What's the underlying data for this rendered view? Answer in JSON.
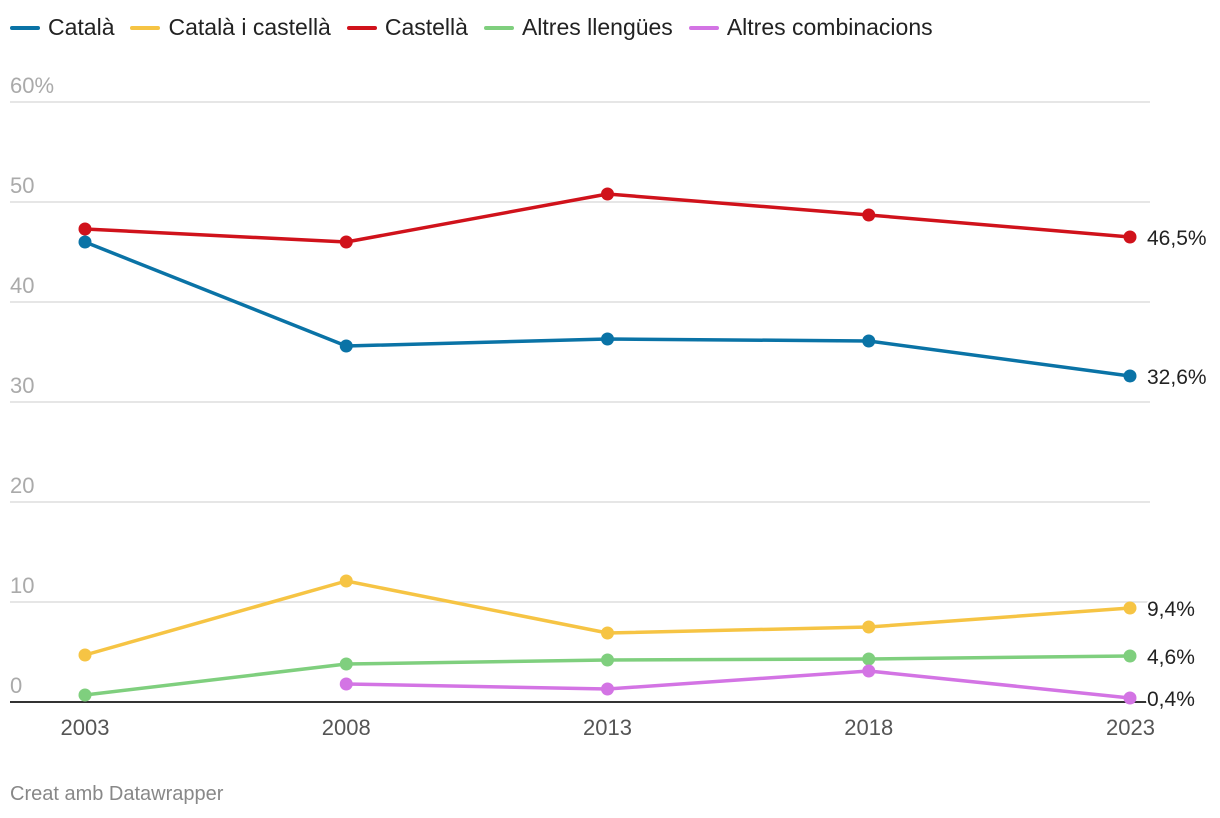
{
  "chart_data": {
    "type": "line",
    "title": "",
    "xlabel": "",
    "ylabel": "",
    "x": [
      2003,
      2008,
      2013,
      2018,
      2023
    ],
    "x_tick_labels": [
      "2003",
      "2008",
      "2013",
      "2018",
      "2023"
    ],
    "y_ticks": [
      0,
      10,
      20,
      30,
      40,
      50,
      60
    ],
    "y_tick_labels": [
      "0",
      "10",
      "20",
      "30",
      "40",
      "50",
      "60%"
    ],
    "ylim": [
      0,
      60
    ],
    "grid": true,
    "legend_position": "top-left",
    "series": [
      {
        "name": "Català",
        "color": "#0a73a6",
        "values": [
          46.0,
          35.6,
          36.3,
          36.1,
          32.6
        ],
        "end_label": "32,6%"
      },
      {
        "name": "Català i castellà",
        "color": "#f6c444",
        "values": [
          4.7,
          12.1,
          6.9,
          7.5,
          9.4
        ],
        "end_label": "9,4%"
      },
      {
        "name": "Castellà",
        "color": "#d0121b",
        "values": [
          47.3,
          46.0,
          50.8,
          48.7,
          46.5
        ],
        "end_label": "46,5%"
      },
      {
        "name": "Altres llengües",
        "color": "#7fcf7e",
        "values": [
          0.7,
          3.8,
          4.2,
          4.3,
          4.6
        ],
        "end_label": "4,6%"
      },
      {
        "name": "Altres combinacions",
        "color": "#d374e4",
        "values": [
          null,
          1.8,
          1.3,
          3.1,
          0.4
        ],
        "end_label": "0,4%"
      }
    ]
  },
  "footer": {
    "credit": "Creat amb Datawrapper"
  }
}
